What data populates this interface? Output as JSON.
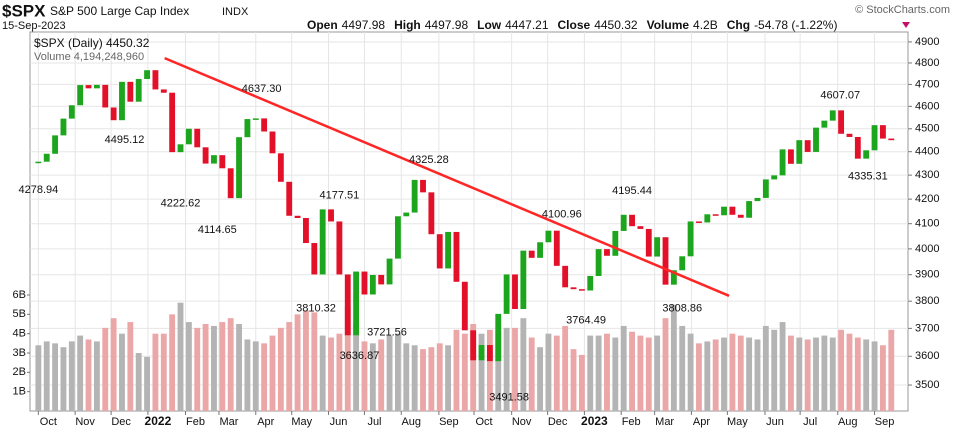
{
  "chart_data": {
    "type": "price-bars",
    "title": "$SPX",
    "subtitle": "S&P 500 Large Cap Index",
    "exchange": "INDX",
    "date": "15-Sep-2023",
    "credit": "© StockCharts.com",
    "quote": [
      {
        "label": "Open",
        "value": "4497.98"
      },
      {
        "label": "High",
        "value": "4497.98"
      },
      {
        "label": "Low",
        "value": "4447.21"
      },
      {
        "label": "Close",
        "value": "4450.32"
      },
      {
        "label": "Volume",
        "value": "4.2B"
      },
      {
        "label": "Chg",
        "value": "-54.78 (-1.22%)"
      }
    ],
    "legend": [
      "$SPX (Daily) 4450.32",
      "Volume 4,194,248,960"
    ],
    "log": true,
    "grid": true,
    "up_color": "#1ea51e",
    "down_color": "#e3102a",
    "xlim": [
      -1,
      104
    ],
    "xticks": [
      {
        "value": 0,
        "label": "Oct"
      },
      {
        "value": 4.4,
        "label": "Nov"
      },
      {
        "value": 8.7,
        "label": "Dec"
      },
      {
        "value": 13.1,
        "label": "2022"
      },
      {
        "value": 17.6,
        "label": "Feb"
      },
      {
        "value": 21.6,
        "label": "Mar"
      },
      {
        "value": 26.0,
        "label": "Apr"
      },
      {
        "value": 30.3,
        "label": "May"
      },
      {
        "value": 34.7,
        "label": "Jun"
      },
      {
        "value": 39.0,
        "label": "Jul"
      },
      {
        "value": 43.4,
        "label": "Aug"
      },
      {
        "value": 47.9,
        "label": "Sep"
      },
      {
        "value": 52.1,
        "label": "Oct"
      },
      {
        "value": 56.6,
        "label": "Nov"
      },
      {
        "value": 60.9,
        "label": "Dec"
      },
      {
        "value": 65.3,
        "label": "2023"
      },
      {
        "value": 69.7,
        "label": "Feb"
      },
      {
        "value": 73.7,
        "label": "Mar"
      },
      {
        "value": 78.1,
        "label": "Apr"
      },
      {
        "value": 82.4,
        "label": "May"
      },
      {
        "value": 86.9,
        "label": "Jun"
      },
      {
        "value": 91.1,
        "label": "Jul"
      },
      {
        "value": 95.6,
        "label": "Aug"
      },
      {
        "value": 100.0,
        "label": "Sep"
      }
    ],
    "ylim": [
      3412,
      4948
    ],
    "yticks": [
      3500,
      3600,
      3700,
      3800,
      3900,
      4000,
      4100,
      4200,
      4300,
      4400,
      4500,
      4600,
      4700,
      4800,
      4900
    ],
    "series": [
      {
        "name": "$SPX",
        "values": [
          4357,
          4391,
          4471,
          4545,
          4605,
          4697,
          4682,
          4698,
          4595,
          4538,
          4712,
          4621,
          4725,
          4766,
          4677,
          4662,
          4398,
          4432,
          4500,
          4419,
          4349,
          4385,
          4329,
          4204,
          4463,
          4543,
          4546,
          4488,
          4393,
          4272,
          4132,
          4123,
          4023,
          3901,
          4158,
          4109,
          3901,
          3675,
          3912,
          3825,
          3899,
          3863,
          3962,
          4130,
          4145,
          4280,
          4228,
          4058,
          3924,
          4067,
          3873,
          3693,
          3586,
          3640,
          3583,
          3753,
          3901,
          3771,
          3993,
          3965,
          4026,
          4072,
          3934,
          3852,
          3845,
          3840,
          3895,
          3999,
          3973,
          4071,
          4136,
          4090,
          4079,
          3970,
          4046,
          3862,
          3917,
          3971,
          4109,
          4105,
          4138,
          4134,
          4169,
          4136,
          4124,
          4192,
          4205,
          4282,
          4299,
          4410,
          4348,
          4450,
          4399,
          4505,
          4536,
          4582,
          4478,
          4464,
          4370,
          4406,
          4516,
          4457,
          4450
        ]
      }
    ],
    "volume": {
      "name": "Volume",
      "up_color": "#b4b4b4",
      "down_color": "#eba7a7",
      "ylim": [
        0,
        6
      ],
      "yticks": [
        {
          "value": 1,
          "label": "1B"
        },
        {
          "value": 2,
          "label": "2B"
        },
        {
          "value": 3,
          "label": "3B"
        },
        {
          "value": 4,
          "label": "4B"
        },
        {
          "value": 5,
          "label": "5B"
        },
        {
          "value": 6,
          "label": "6B"
        }
      ],
      "values": [
        3.4,
        3.6,
        3.5,
        3.3,
        3.6,
        3.9,
        3.7,
        3.6,
        4.3,
        4.8,
        4.0,
        4.6,
        3.0,
        2.8,
        4.0,
        4.0,
        5.0,
        5.6,
        4.6,
        4.3,
        4.5,
        4.4,
        4.6,
        4.8,
        4.5,
        3.7,
        3.6,
        3.5,
        3.9,
        4.3,
        4.6,
        5.0,
        5.2,
        5.1,
        3.9,
        3.8,
        4.0,
        5.4,
        4.5,
        3.6,
        3.5,
        3.7,
        3.9,
        4.0,
        3.5,
        3.4,
        3.2,
        3.3,
        3.5,
        3.4,
        4.2,
        4.0,
        4.5,
        4.0,
        4.2,
        4.1,
        4.3,
        4.3,
        4.8,
        3.8,
        3.3,
        4.0,
        3.9,
        4.4,
        3.2,
        2.9,
        3.9,
        3.9,
        4.0,
        3.8,
        4.4,
        4.1,
        3.9,
        3.8,
        3.9,
        4.8,
        5.5,
        4.4,
        4.0,
        3.5,
        3.6,
        3.7,
        3.8,
        4.0,
        3.9,
        3.8,
        3.7,
        4.4,
        4.2,
        4.6,
        3.9,
        3.8,
        3.7,
        3.8,
        3.9,
        3.8,
        4.2,
        4.0,
        3.8,
        3.7,
        3.6,
        3.4,
        4.2
      ]
    },
    "trendline": {
      "x": [
        15.1,
        82.6
      ],
      "y": [
        4823,
        3820
      ],
      "color": "#ff2626"
    },
    "annotations": [
      {
        "x": 0,
        "y": 4278.94,
        "label": "4278.94"
      },
      {
        "x": 10.3,
        "y": 4495.12,
        "label": "4495.12"
      },
      {
        "x": 17,
        "y": 4222.62,
        "label": "4222.62"
      },
      {
        "x": 21.4,
        "y": 4114.65,
        "label": "4114.65"
      },
      {
        "x": 26.7,
        "y": 4637.3,
        "label": "4637.30"
      },
      {
        "x": 33.2,
        "y": 3810.32,
        "label": "3810.32"
      },
      {
        "x": 36,
        "y": 4177.51,
        "label": "4177.51"
      },
      {
        "x": 38.4,
        "y": 3636.87,
        "label": "3636.87"
      },
      {
        "x": 41.7,
        "y": 3721.56,
        "label": "3721.56"
      },
      {
        "x": 46.7,
        "y": 4325.28,
        "label": "4325.28"
      },
      {
        "x": 56.3,
        "y": 3491.58,
        "label": "3491.58"
      },
      {
        "x": 62.6,
        "y": 4100.96,
        "label": "4100.96"
      },
      {
        "x": 65.5,
        "y": 3764.49,
        "label": "3764.49"
      },
      {
        "x": 71,
        "y": 4195.44,
        "label": "4195.44"
      },
      {
        "x": 77,
        "y": 3808.86,
        "label": "3808.86"
      },
      {
        "x": 95.9,
        "y": 4607.07,
        "label": "4607.07"
      },
      {
        "x": 99.2,
        "y": 4335.31,
        "label": "4335.31"
      }
    ]
  }
}
